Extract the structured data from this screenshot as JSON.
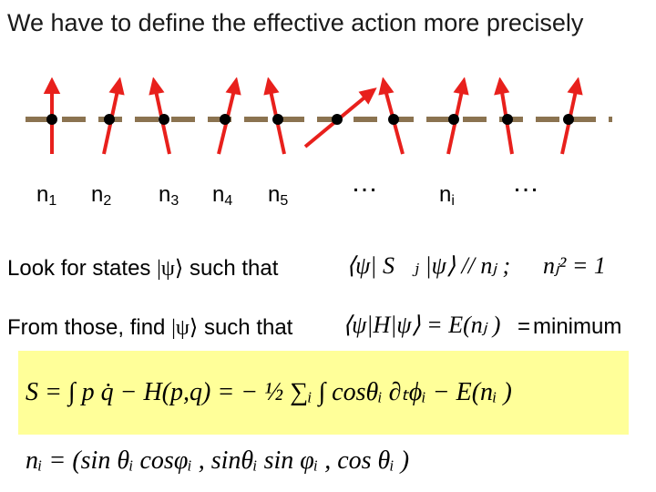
{
  "title": "We have to define the effective action more precisely",
  "spin_labels": [
    {
      "base": "n",
      "sub": "1"
    },
    {
      "base": "n",
      "sub": "2"
    },
    {
      "base": "n",
      "sub": "3"
    },
    {
      "base": "n",
      "sub": "4"
    },
    {
      "base": "n",
      "sub": "5"
    },
    {
      "base": "…",
      "sub": ""
    },
    {
      "base": "n",
      "sub": "i"
    },
    {
      "base": "…",
      "sub": ""
    }
  ],
  "line1": {
    "text_before": "Look for states",
    "ket": "|ψ⟩",
    "text_after": "such that",
    "formula_a": "⟨ψ| S⃗ⱼ |ψ⟩ // nⱼ ;",
    "formula_b": "nⱼ² = 1"
  },
  "line2": {
    "text_before": "From those, find",
    "ket": "|ψ⟩",
    "text_after": "such that",
    "formula": "⟨ψ|H|ψ⟩ = E(nⱼ )",
    "eq": "=",
    "word": "minimum"
  },
  "action": "S = ∫ p q̇ − H(p,q) = − ½ ∑ᵢ ∫ cosθᵢ ∂ₜϕᵢ − E(nᵢ )",
  "n_vector": "nᵢ = (sin θᵢ cosφᵢ , sinθᵢ sin φᵢ , cos θᵢ )",
  "colors": {
    "lattice": "#8b7350",
    "spin": "#e8201c",
    "site": "#000000",
    "highlight": "#ffff99"
  }
}
